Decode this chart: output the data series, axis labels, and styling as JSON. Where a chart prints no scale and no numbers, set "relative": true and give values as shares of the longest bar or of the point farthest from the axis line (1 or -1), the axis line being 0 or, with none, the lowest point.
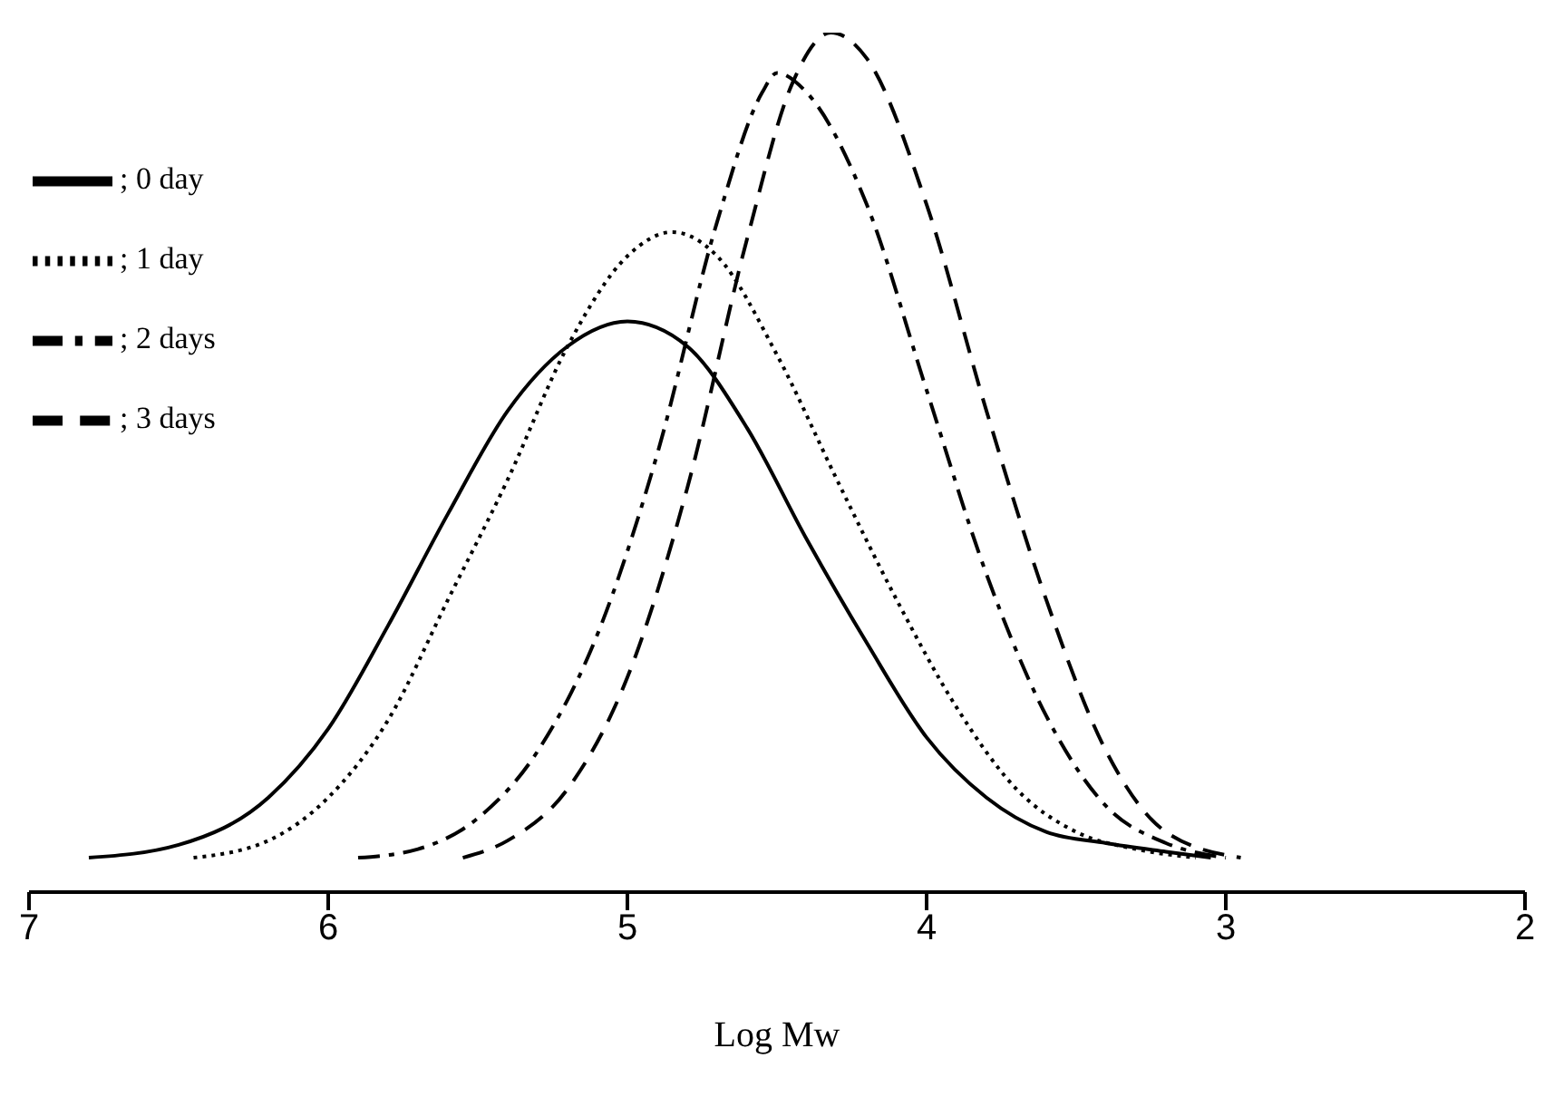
{
  "chart_data": {
    "type": "line",
    "relative": true,
    "xlabel": "Log Mw",
    "xlim": [
      7,
      2
    ],
    "xticks": [
      7,
      6,
      5,
      4,
      3,
      2
    ],
    "grid": false,
    "legend": "top left",
    "marker": "none",
    "series": [
      {
        "name": "; 0 day",
        "color": "#000000",
        "line_style": "solid",
        "x": [
          6.8,
          6.5,
          6.2,
          6.0,
          5.8,
          5.6,
          5.4,
          5.2,
          5.0,
          4.8,
          4.6,
          4.4,
          4.2,
          4.0,
          3.8,
          3.6,
          3.4,
          3.2,
          3.05
        ],
        "values": [
          0.04,
          0.055,
          0.11,
          0.19,
          0.31,
          0.44,
          0.56,
          0.635,
          0.664,
          0.635,
          0.54,
          0.41,
          0.29,
          0.18,
          0.11,
          0.07,
          0.057,
          0.047,
          0.04
        ]
      },
      {
        "name": "; 1 day",
        "color": "#000000",
        "line_style": "dotted",
        "x": [
          6.45,
          6.2,
          6.0,
          5.8,
          5.6,
          5.4,
          5.2,
          5.0,
          4.85,
          4.7,
          4.5,
          4.3,
          4.1,
          3.9,
          3.7,
          3.5,
          3.3,
          3.1
        ],
        "values": [
          0.04,
          0.06,
          0.11,
          0.2,
          0.34,
          0.48,
          0.635,
          0.74,
          0.768,
          0.74,
          0.625,
          0.48,
          0.34,
          0.215,
          0.12,
          0.07,
          0.05,
          0.04
        ]
      },
      {
        "name": "; 2 days",
        "color": "#000000",
        "line_style": "dashdot",
        "x": [
          5.9,
          5.7,
          5.5,
          5.3,
          5.1,
          4.9,
          4.7,
          4.55,
          4.5,
          4.4,
          4.2,
          4.0,
          3.8,
          3.6,
          3.4,
          3.2,
          3.0
        ],
        "values": [
          0.04,
          0.05,
          0.086,
          0.164,
          0.3,
          0.51,
          0.78,
          0.93,
          0.953,
          0.93,
          0.8,
          0.584,
          0.37,
          0.205,
          0.1,
          0.057,
          0.04
        ]
      },
      {
        "name": "; 3 days",
        "color": "#000000",
        "line_style": "dashed",
        "x": [
          5.55,
          5.4,
          5.2,
          5.0,
          4.8,
          4.6,
          4.45,
          4.32,
          4.2,
          4.0,
          3.8,
          3.6,
          3.4,
          3.2,
          2.95
        ],
        "values": [
          0.04,
          0.06,
          0.12,
          0.25,
          0.47,
          0.76,
          0.94,
          1,
          0.97,
          0.8,
          0.56,
          0.34,
          0.164,
          0.07,
          0.04
        ]
      }
    ]
  }
}
